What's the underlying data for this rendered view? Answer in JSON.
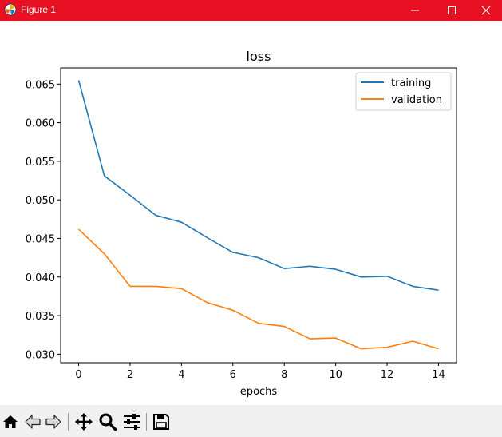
{
  "window": {
    "title": "Figure 1",
    "title_color": "#e81123",
    "controls": [
      "minimize-icon",
      "maximize-icon",
      "close-icon"
    ]
  },
  "toolbar": {
    "icons": [
      "home-icon",
      "back-arrow-icon",
      "forward-arrow-icon",
      "pan-icon",
      "zoom-icon",
      "configure-subplots-icon",
      "save-icon"
    ]
  },
  "chart_data": {
    "type": "line",
    "title": "loss",
    "xlabel": "epochs",
    "ylabel": "",
    "x": [
      0,
      1,
      2,
      3,
      4,
      5,
      6,
      7,
      8,
      9,
      10,
      11,
      12,
      13,
      14
    ],
    "xlim": [
      -0.7,
      14.7
    ],
    "ylim": [
      0.0289,
      0.0671
    ],
    "xticks": [
      0,
      2,
      4,
      6,
      8,
      10,
      12,
      14
    ],
    "xtick_labels": [
      "0",
      "2",
      "4",
      "6",
      "8",
      "10",
      "12",
      "14"
    ],
    "yticks": [
      0.03,
      0.035,
      0.04,
      0.045,
      0.05,
      0.055,
      0.06,
      0.065
    ],
    "ytick_labels": [
      "0.030",
      "0.035",
      "0.040",
      "0.045",
      "0.050",
      "0.055",
      "0.060",
      "0.065"
    ],
    "grid": false,
    "legend_position": "upper right",
    "series": [
      {
        "name": "training",
        "color": "#1f77b4",
        "values": [
          0.0655,
          0.0531,
          0.0506,
          0.048,
          0.0471,
          0.0451,
          0.0432,
          0.0425,
          0.0411,
          0.0414,
          0.041,
          0.04,
          0.0401,
          0.0388,
          0.0383
        ]
      },
      {
        "name": "validation",
        "color": "#ff7f0e",
        "values": [
          0.0462,
          0.043,
          0.0388,
          0.0388,
          0.0385,
          0.0367,
          0.0357,
          0.034,
          0.0336,
          0.032,
          0.0321,
          0.0307,
          0.0309,
          0.0317,
          0.0307
        ]
      }
    ]
  }
}
